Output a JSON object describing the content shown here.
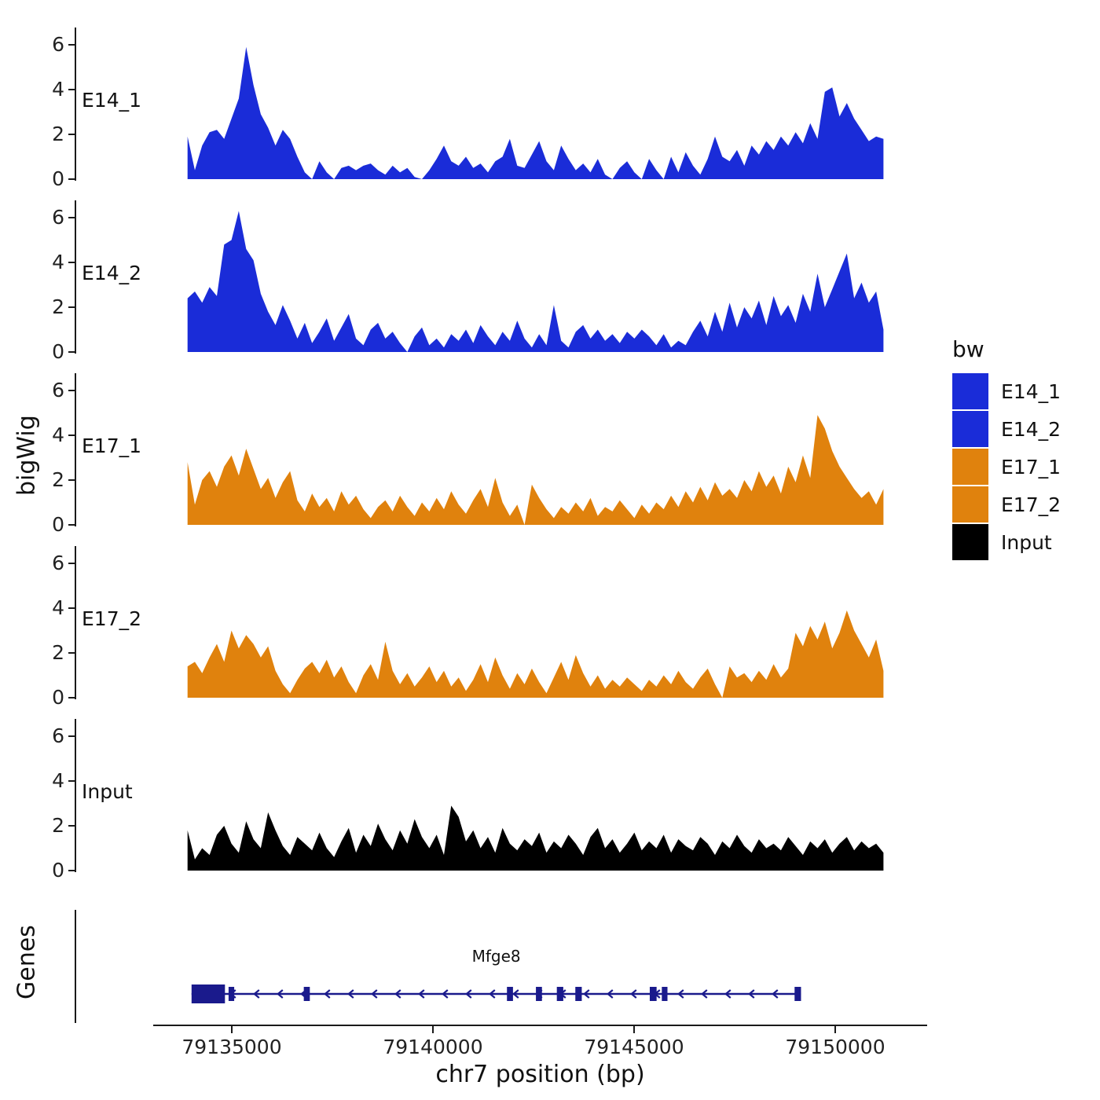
{
  "ylabel": "bigWig",
  "genes_label": "Genes",
  "xlabel": "chr7 position (bp)",
  "legend": {
    "title": "bw",
    "entries": [
      {
        "label": "E14_1",
        "color": "#1A2CD8"
      },
      {
        "label": "E14_2",
        "color": "#1A2CD8"
      },
      {
        "label": "E17_1",
        "color": "#E0820D"
      },
      {
        "label": "E17_2",
        "color": "#E0820D"
      },
      {
        "label": "Input",
        "color": "#000000"
      }
    ]
  },
  "gene_track": {
    "gene_name": "Mfge8",
    "strand": "-",
    "color": "#1A1A8C",
    "start": 79134000,
    "end": 79149150,
    "exons": [
      [
        79134000,
        79134830,
        24
      ],
      [
        79134920,
        79135060,
        18
      ],
      [
        79136790,
        79136940,
        18
      ],
      [
        79141840,
        79141990,
        18
      ],
      [
        79142560,
        79142710,
        18
      ],
      [
        79143080,
        79143240,
        18
      ],
      [
        79143540,
        79143700,
        18
      ],
      [
        79145390,
        79145560,
        18
      ],
      [
        79145690,
        79145830,
        18
      ],
      [
        79148990,
        79149150,
        18
      ]
    ]
  },
  "chart_data": {
    "type": "area",
    "title": "",
    "xlabel": "chr7 position (bp)",
    "ylabel": "bigWig",
    "x_start": 79133900,
    "x_end": 79151200,
    "ylim": [
      0,
      6.5
    ],
    "y_ticks": [
      0,
      2,
      4,
      6
    ],
    "x_ticks": [
      79135000,
      79140000,
      79145000,
      79150000
    ],
    "x_tick_labels": [
      "79135000",
      "79140000",
      "79145000",
      "79150000"
    ],
    "legend_position": "right",
    "series": [
      {
        "name": "E14_1",
        "color": "#1A2CD8",
        "values": [
          1.9,
          0.4,
          1.5,
          2.1,
          2.2,
          1.8,
          2.7,
          3.6,
          5.9,
          4.2,
          2.9,
          2.3,
          1.5,
          2.2,
          1.8,
          1.0,
          0.3,
          0,
          0.8,
          0.3,
          0,
          0.5,
          0.6,
          0.4,
          0.6,
          0.7,
          0.4,
          0.2,
          0.6,
          0.3,
          0.5,
          0.1,
          0,
          0.4,
          0.9,
          1.5,
          0.8,
          0.6,
          1.0,
          0.5,
          0.7,
          0.3,
          0.8,
          1.0,
          1.8,
          0.6,
          0.5,
          1.1,
          1.7,
          0.8,
          0.4,
          1.5,
          0.9,
          0.4,
          0.7,
          0.3,
          0.9,
          0.2,
          0,
          0.5,
          0.8,
          0.3,
          0,
          0.9,
          0.4,
          0,
          1.0,
          0.3,
          1.2,
          0.6,
          0.2,
          0.9,
          1.9,
          1.0,
          0.8,
          1.3,
          0.6,
          1.5,
          1.1,
          1.7,
          1.3,
          1.9,
          1.5,
          2.1,
          1.6,
          2.5,
          1.8,
          3.9,
          4.1,
          2.8,
          3.4,
          2.7,
          2.2,
          1.7,
          1.9,
          1.8
        ]
      },
      {
        "name": "E14_2",
        "color": "#1A2CD8",
        "values": [
          2.4,
          2.7,
          2.2,
          2.9,
          2.5,
          4.8,
          5.0,
          6.3,
          4.6,
          4.1,
          2.6,
          1.8,
          1.2,
          2.1,
          1.4,
          0.6,
          1.3,
          0.4,
          0.9,
          1.5,
          0.5,
          1.1,
          1.7,
          0.6,
          0.3,
          1.0,
          1.3,
          0.6,
          0.9,
          0.4,
          0,
          0.7,
          1.1,
          0.3,
          0.6,
          0.2,
          0.8,
          0.5,
          1.0,
          0.4,
          1.2,
          0.7,
          0.3,
          0.9,
          0.5,
          1.4,
          0.6,
          0.2,
          0.8,
          0.3,
          2.1,
          0.5,
          0.2,
          0.9,
          1.2,
          0.6,
          1.0,
          0.5,
          0.8,
          0.4,
          0.9,
          0.6,
          1.0,
          0.7,
          0.3,
          0.8,
          0.2,
          0.5,
          0.3,
          0.9,
          1.4,
          0.7,
          1.8,
          0.9,
          2.2,
          1.1,
          2.0,
          1.5,
          2.3,
          1.2,
          2.5,
          1.6,
          2.1,
          1.3,
          2.6,
          1.8,
          3.5,
          2.0,
          2.8,
          3.6,
          4.4,
          2.4,
          3.1,
          2.2,
          2.7,
          1.0
        ]
      },
      {
        "name": "E17_1",
        "color": "#E0820D",
        "values": [
          2.8,
          0.9,
          2.0,
          2.4,
          1.7,
          2.6,
          3.1,
          2.2,
          3.4,
          2.5,
          1.6,
          2.1,
          1.2,
          1.9,
          2.4,
          1.1,
          0.6,
          1.4,
          0.8,
          1.2,
          0.6,
          1.5,
          0.9,
          1.3,
          0.7,
          0.3,
          0.8,
          1.1,
          0.6,
          1.3,
          0.8,
          0.4,
          1.0,
          0.6,
          1.2,
          0.7,
          1.5,
          0.9,
          0.5,
          1.1,
          1.6,
          0.8,
          2.1,
          1.0,
          0.4,
          0.9,
          0,
          1.8,
          1.2,
          0.7,
          0.3,
          0.8,
          0.5,
          1.0,
          0.6,
          1.2,
          0.4,
          0.8,
          0.6,
          1.1,
          0.7,
          0.3,
          0.9,
          0.5,
          1.0,
          0.7,
          1.3,
          0.8,
          1.5,
          1.0,
          1.7,
          1.1,
          1.9,
          1.3,
          1.6,
          1.2,
          2.0,
          1.5,
          2.4,
          1.7,
          2.2,
          1.4,
          2.6,
          1.9,
          3.1,
          2.1,
          4.9,
          4.3,
          3.3,
          2.6,
          2.1,
          1.6,
          1.2,
          1.5,
          0.9,
          1.6
        ]
      },
      {
        "name": "E17_2",
        "color": "#E0820D",
        "values": [
          1.4,
          1.6,
          1.1,
          1.8,
          2.4,
          1.6,
          3.0,
          2.2,
          2.8,
          2.4,
          1.8,
          2.3,
          1.2,
          0.6,
          0.2,
          0.8,
          1.3,
          1.6,
          1.1,
          1.7,
          0.9,
          1.4,
          0.7,
          0.2,
          1.0,
          1.5,
          0.8,
          2.5,
          1.2,
          0.6,
          1.1,
          0.5,
          0.9,
          1.4,
          0.7,
          1.2,
          0.5,
          0.9,
          0.3,
          0.8,
          1.5,
          0.7,
          1.8,
          1.0,
          0.4,
          1.1,
          0.6,
          1.3,
          0.7,
          0.2,
          0.9,
          1.6,
          0.8,
          1.9,
          1.1,
          0.5,
          1.0,
          0.4,
          0.8,
          0.5,
          0.9,
          0.6,
          0.3,
          0.8,
          0.5,
          1.0,
          0.6,
          1.2,
          0.7,
          0.4,
          0.9,
          1.3,
          0.6,
          0,
          1.4,
          0.9,
          1.1,
          0.7,
          1.2,
          0.8,
          1.5,
          0.9,
          1.3,
          2.9,
          2.3,
          3.2,
          2.6,
          3.4,
          2.2,
          2.9,
          3.9,
          3.0,
          2.4,
          1.8,
          2.6,
          1.2
        ]
      },
      {
        "name": "Input",
        "color": "#000000",
        "values": [
          1.8,
          0.5,
          1.0,
          0.7,
          1.6,
          2.0,
          1.2,
          0.8,
          2.2,
          1.4,
          1.0,
          2.6,
          1.8,
          1.1,
          0.7,
          1.5,
          1.2,
          0.9,
          1.7,
          1.0,
          0.6,
          1.3,
          1.9,
          0.8,
          1.6,
          1.1,
          2.1,
          1.4,
          0.9,
          1.8,
          1.2,
          2.3,
          1.5,
          1.0,
          1.6,
          0.7,
          2.9,
          2.4,
          1.3,
          1.8,
          1.0,
          1.5,
          0.8,
          1.9,
          1.2,
          0.9,
          1.4,
          1.1,
          1.7,
          0.8,
          1.3,
          1.0,
          1.6,
          1.2,
          0.7,
          1.5,
          1.9,
          1.0,
          1.4,
          0.8,
          1.2,
          1.7,
          0.9,
          1.3,
          1.0,
          1.6,
          0.8,
          1.4,
          1.1,
          0.9,
          1.5,
          1.2,
          0.7,
          1.3,
          1.0,
          1.6,
          1.1,
          0.8,
          1.4,
          1.0,
          1.2,
          0.9,
          1.5,
          1.1,
          0.7,
          1.3,
          1.0,
          1.4,
          0.8,
          1.2,
          1.5,
          0.9,
          1.3,
          1.0,
          1.2,
          0.8
        ]
      }
    ]
  }
}
